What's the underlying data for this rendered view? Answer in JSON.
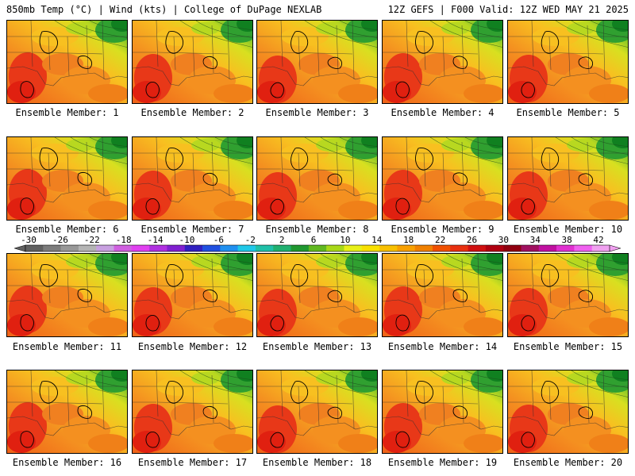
{
  "header": {
    "left_title": "850mb Temp (°C) | Wind (kts) | College of DuPage NEXLAB",
    "right_title": "12Z GEFS | F000 Valid: 12Z WED MAY 21 2025"
  },
  "members": [
    {
      "label": "Ensemble Member: 1"
    },
    {
      "label": "Ensemble Member: 2"
    },
    {
      "label": "Ensemble Member: 3"
    },
    {
      "label": "Ensemble Member: 4"
    },
    {
      "label": "Ensemble Member: 5"
    },
    {
      "label": "Ensemble Member: 6"
    },
    {
      "label": "Ensemble Member: 7"
    },
    {
      "label": "Ensemble Member: 8"
    },
    {
      "label": "Ensemble Member: 9"
    },
    {
      "label": "Ensemble Member: 10"
    },
    {
      "label": "Ensemble Member: 11"
    },
    {
      "label": "Ensemble Member: 12"
    },
    {
      "label": "Ensemble Member: 13"
    },
    {
      "label": "Ensemble Member: 14"
    },
    {
      "label": "Ensemble Member: 15"
    },
    {
      "label": "Ensemble Member: 16"
    },
    {
      "label": "Ensemble Member: 17"
    },
    {
      "label": "Ensemble Member: 18"
    },
    {
      "label": "Ensemble Member: 19"
    },
    {
      "label": "Ensemble Member: 20"
    }
  ],
  "colorbar": {
    "tick_labels": [
      "-30",
      "-26",
      "-22",
      "-18",
      "-14",
      "-10",
      "-6",
      "-2",
      "2",
      "6",
      "10",
      "14",
      "18",
      "22",
      "26",
      "30",
      "34",
      "38",
      "42"
    ],
    "colors": [
      "#606060",
      "#7c7c7c",
      "#989898",
      "#b4b4b4",
      "#c8a0e0",
      "#d060e0",
      "#e040f0",
      "#b030e0",
      "#8020d0",
      "#3020c0",
      "#2050e0",
      "#2090f0",
      "#20c8e8",
      "#20c0a8",
      "#20b070",
      "#209830",
      "#60b820",
      "#a8d818",
      "#e8f018",
      "#f8e000",
      "#f8c000",
      "#f8a000",
      "#f08000",
      "#f05000",
      "#e83010",
      "#d01010",
      "#b00010",
      "#900010",
      "#a01060",
      "#c010a0",
      "#e030d0",
      "#f060f0",
      "#f0a0f0"
    ]
  }
}
